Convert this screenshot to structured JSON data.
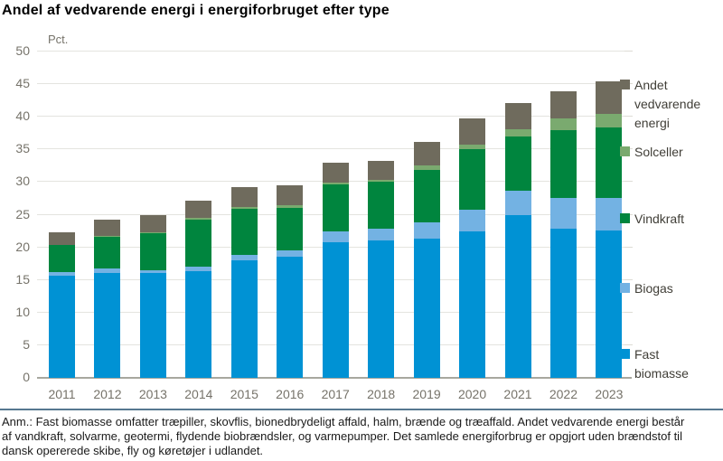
{
  "title": "Andel af vedvarende energi i energiforbruget efter type",
  "y_unit": "Pct.",
  "footnote": {
    "lines": [
      "Anm.: Fast biomasse omfatter træpiller, skovflis, bionedbrydeligt affald, halm, brænde og træaffald. Andet vedvarende energi består",
      "af vandkraft, solvarme, geotermi, flydende biobrændsler, og varmepumper. Det samlede energiforbrug er opgjort uden brændstof til",
      "dansk opererede skibe, fly og køretøjer i udlandet."
    ]
  },
  "colors": {
    "fast_biomasse": "#0092d4",
    "biogas": "#73b2e3",
    "vindkraft": "#00853e",
    "solceller": "#7aaa6f",
    "andet_vedvarende": "#6f6b5d",
    "grid": "#e4e4df",
    "axis_line": "#a7a79f",
    "tick_text": "#76736a",
    "separator_rule": "#567891"
  },
  "chart_data": {
    "type": "bar",
    "stacked": true,
    "title": "Andel af vedvarende energi i energiforbruget efter type",
    "xlabel": "",
    "ylabel": "Pct.",
    "ylim": [
      0,
      50
    ],
    "yticks": [
      0,
      5,
      10,
      15,
      20,
      25,
      30,
      35,
      40,
      45,
      50
    ],
    "grid": true,
    "legend_position": "right",
    "categories": [
      "2011",
      "2012",
      "2013",
      "2014",
      "2015",
      "2016",
      "2017",
      "2018",
      "2019",
      "2020",
      "2021",
      "2022",
      "2023"
    ],
    "series": [
      {
        "name": "Fast biomasse",
        "color": "#0092d4",
        "values": [
          15.6,
          16.1,
          16.0,
          16.4,
          18.0,
          18.6,
          20.8,
          21.0,
          21.4,
          22.5,
          24.9,
          22.9,
          22.6
        ]
      },
      {
        "name": "Biogas",
        "color": "#73b2e3",
        "values": [
          0.6,
          0.6,
          0.5,
          0.6,
          0.8,
          1.0,
          1.6,
          1.8,
          2.4,
          3.3,
          3.8,
          4.6,
          5.0
        ]
      },
      {
        "name": "Vindkraft",
        "color": "#00853e",
        "values": [
          4.2,
          5.0,
          5.6,
          7.2,
          7.1,
          6.5,
          7.2,
          7.2,
          8.1,
          9.2,
          8.3,
          10.5,
          10.7
        ]
      },
      {
        "name": "Solceller",
        "color": "#7aaa6f",
        "values": [
          0.0,
          0.1,
          0.2,
          0.3,
          0.3,
          0.3,
          0.3,
          0.3,
          0.7,
          0.8,
          1.1,
          1.8,
          2.1
        ]
      },
      {
        "name": "Andet vedvarende energi",
        "color": "#6f6b5d",
        "values": [
          1.9,
          2.5,
          2.6,
          2.7,
          3.0,
          3.1,
          3.0,
          3.0,
          3.5,
          4.0,
          4.0,
          4.1,
          5.1
        ]
      }
    ],
    "totals": [
      22.3,
      24.3,
      24.9,
      27.2,
      29.2,
      29.5,
      32.9,
      33.3,
      36.1,
      39.8,
      42.1,
      43.9,
      45.5
    ]
  }
}
